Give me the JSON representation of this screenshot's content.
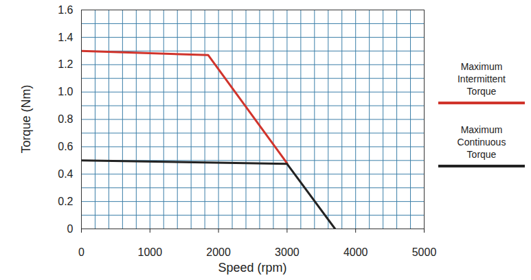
{
  "chart_data": {
    "type": "line",
    "x_label": "Speed (rpm)",
    "y_label": "Torque (Nm)",
    "xlim": [
      0,
      5000
    ],
    "xticks": [
      0,
      1000,
      2000,
      3000,
      4000,
      5000
    ],
    "ylim": [
      0,
      1.6
    ],
    "yticks": [
      0,
      0.2,
      0.4,
      0.6,
      0.8,
      {
        "value": 1,
        "label": "1.0"
      },
      1.2,
      1.4,
      1.6
    ],
    "grid": true,
    "legend": "right",
    "series": [
      {
        "name": "Maximum Intermittent Torque",
        "color": "#d0342c",
        "x": [
          0,
          1850,
          3000
        ],
        "values": [
          1.3,
          1.27,
          0.48
        ]
      },
      {
        "name": "Maximum Continuous Torque",
        "color": "#222222",
        "x": [
          0,
          3000,
          3700
        ],
        "values": [
          0.5,
          0.475,
          0
        ]
      }
    ]
  }
}
